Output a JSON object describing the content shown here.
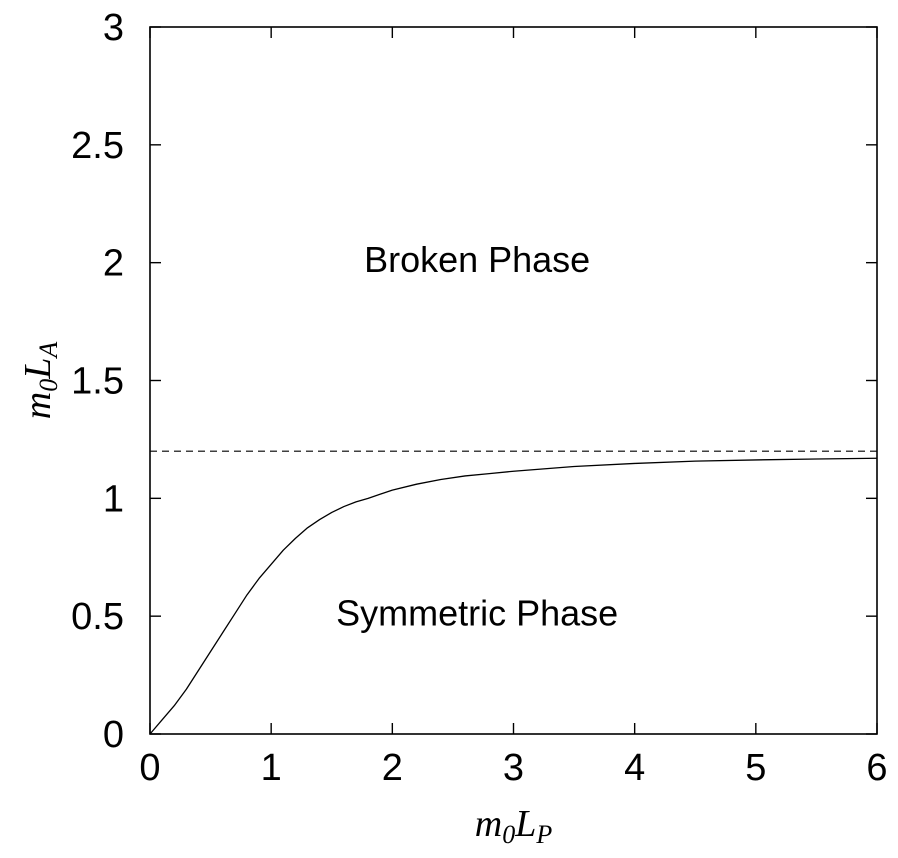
{
  "chart_data": {
    "type": "line",
    "title": "",
    "xlabel": {
      "main": "m",
      "sub1": "0",
      "main2": "L",
      "sub2": "P"
    },
    "ylabel": {
      "main": "m",
      "sub1": "0",
      "main2": "L",
      "sub2": "A"
    },
    "xlim": [
      0,
      6
    ],
    "ylim": [
      0,
      3
    ],
    "x_ticks": [
      0,
      1,
      2,
      3,
      4,
      5,
      6
    ],
    "x_tick_labels": [
      "0",
      "1",
      "2",
      "3",
      "4",
      "5",
      "6"
    ],
    "y_ticks": [
      0,
      0.5,
      1,
      1.5,
      2,
      2.5,
      3
    ],
    "y_tick_labels": [
      "0",
      "0.5",
      "1",
      "1.5",
      "2",
      "2.5",
      "3"
    ],
    "grid": false,
    "series": [
      {
        "style": "solid",
        "color": "#000000",
        "x": [
          0,
          0.1,
          0.2,
          0.3,
          0.4,
          0.5,
          0.6,
          0.7,
          0.8,
          0.9,
          1.0,
          1.1,
          1.2,
          1.3,
          1.4,
          1.5,
          1.6,
          1.7,
          1.8,
          2.0,
          2.2,
          2.4,
          2.6,
          2.8,
          3.0,
          3.5,
          4.0,
          4.5,
          5.0,
          5.5,
          6.0
        ],
        "y": [
          0,
          0.06,
          0.12,
          0.19,
          0.27,
          0.35,
          0.43,
          0.51,
          0.59,
          0.66,
          0.72,
          0.78,
          0.83,
          0.875,
          0.91,
          0.94,
          0.965,
          0.985,
          1.0,
          1.035,
          1.06,
          1.08,
          1.095,
          1.105,
          1.115,
          1.135,
          1.148,
          1.158,
          1.163,
          1.167,
          1.17
        ]
      },
      {
        "style": "dashed",
        "color": "#000000",
        "x": [
          0,
          6
        ],
        "y": [
          1.2,
          1.2
        ]
      }
    ],
    "annotations": [
      {
        "text": "Broken Phase",
        "x": 2.7,
        "y": 2.0
      },
      {
        "text": "Symmetric Phase",
        "x": 2.7,
        "y": 0.5
      }
    ]
  }
}
